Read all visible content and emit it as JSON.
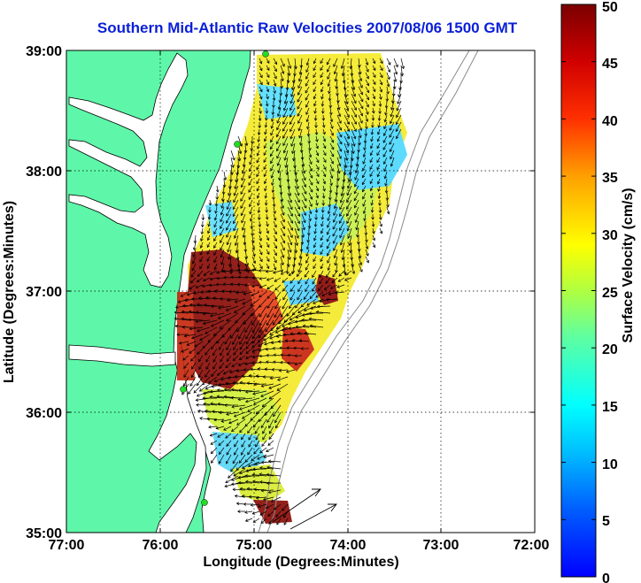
{
  "title": "Southern Mid-Atlantic Raw Velocities 2007/08/06 1500 GMT",
  "axes": {
    "xlabel": "Longitude (Degrees:Minutes)",
    "ylabel": "Latitude (Degrees:Minutes)",
    "x_ticks": [
      "77:00",
      "76:00",
      "75:00",
      "74:00",
      "73:00",
      "72:00"
    ],
    "y_ticks": [
      "39:00",
      "38:00",
      "37:00",
      "36:00",
      "35:00"
    ],
    "grid": "dotted"
  },
  "colorbar": {
    "label": "Surface Velocity (cm/s)",
    "ticks": [
      "0",
      "5",
      "10",
      "15",
      "20",
      "25",
      "30",
      "35",
      "40",
      "45",
      "50"
    ],
    "min": 0,
    "max": 50,
    "colormap": "jet"
  },
  "colors": {
    "land": "#5ef7a9",
    "title": "#0a1fd8",
    "station": "#22dd22"
  }
}
